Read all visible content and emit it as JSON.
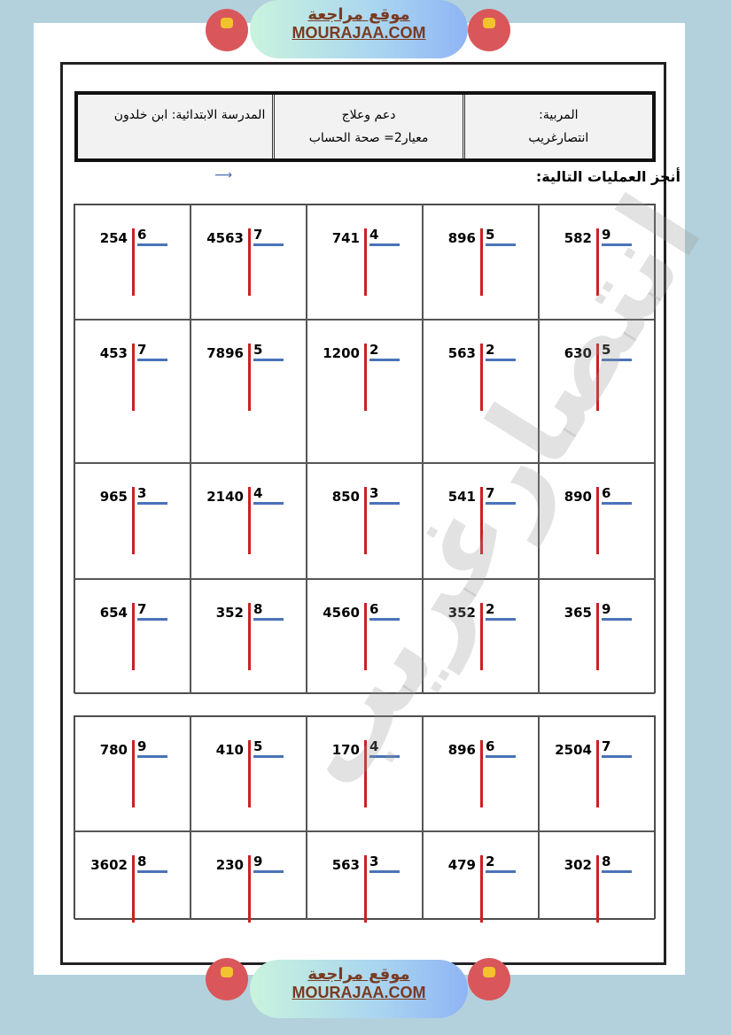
{
  "banner": {
    "arabic": "موقع مراجعة",
    "site": "MOURAJAA.COM"
  },
  "header": {
    "school": "المدرسة الابتدائية: ابن خلدون",
    "subject": "دعم وعلاج",
    "criterion": "معيار2= صحة الحساب",
    "teacher_label": "المربية:",
    "teacher_name": "انتصارغريب"
  },
  "instruction": "أنجز العمليات التالية:",
  "watermark": "انتصارغريب",
  "colors": {
    "divider_line": "#cc2020",
    "divisor_underline": "#4a72b8"
  },
  "grid1": [
    [
      [
        "254",
        "6"
      ],
      [
        "4563",
        "7"
      ],
      [
        "741",
        "4"
      ],
      [
        "896",
        "5"
      ],
      [
        "582",
        "9"
      ]
    ],
    [
      [
        "453",
        "7"
      ],
      [
        "7896",
        "5"
      ],
      [
        "1200",
        "2"
      ],
      [
        "563",
        "2"
      ],
      [
        "630",
        "5"
      ]
    ],
    [
      [
        "965",
        "3"
      ],
      [
        "2140",
        "4"
      ],
      [
        "850",
        "3"
      ],
      [
        "541",
        "7"
      ],
      [
        "890",
        "6"
      ]
    ],
    [
      [
        "654",
        "7"
      ],
      [
        "352",
        "8"
      ],
      [
        "4560",
        "6"
      ],
      [
        "352",
        "2"
      ],
      [
        "365",
        "9"
      ]
    ]
  ],
  "grid2": [
    [
      [
        "780",
        "9"
      ],
      [
        "410",
        "5"
      ],
      [
        "170",
        "4"
      ],
      [
        "896",
        "6"
      ],
      [
        "2504",
        "7"
      ]
    ],
    [
      [
        "3602",
        "8"
      ],
      [
        "230",
        "9"
      ],
      [
        "563",
        "3"
      ],
      [
        "479",
        "2"
      ],
      [
        "302",
        "8"
      ]
    ]
  ]
}
